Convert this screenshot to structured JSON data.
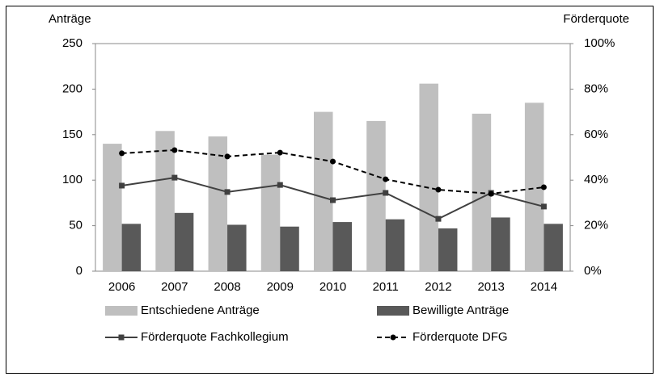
{
  "chart_data": {
    "type": "bar",
    "ylabel": "Anträge",
    "y2label": "Förderquote",
    "categories": [
      "2006",
      "2007",
      "2008",
      "2009",
      "2010",
      "2011",
      "2012",
      "2013",
      "2014"
    ],
    "series": [
      {
        "name": "Entschiedene Anträge",
        "type": "bar",
        "color": "#bfbfbf",
        "values": [
          140,
          154,
          148,
          128,
          175,
          165,
          206,
          173,
          185
        ]
      },
      {
        "name": "Bewilligte Anträge",
        "type": "bar",
        "color": "#595959",
        "values": [
          52,
          64,
          51,
          49,
          54,
          57,
          47,
          59,
          52
        ]
      },
      {
        "name": "Förderquote Fachkollegium",
        "type": "line",
        "axis": "y2",
        "color": "#404040",
        "marker": "square",
        "linestyle": "solid",
        "values": [
          37.6,
          41.1,
          34.8,
          37.9,
          31.2,
          34.4,
          23,
          34.4,
          28.4
        ]
      },
      {
        "name": "Förderquote DFG",
        "type": "line",
        "axis": "y2",
        "color": "#000000",
        "marker": "circle",
        "linestyle": "dashed",
        "values": [
          51.8,
          53.2,
          50.4,
          52.1,
          48.2,
          40.4,
          35.8,
          34,
          36.9
        ]
      }
    ],
    "ylim": [
      0,
      250
    ],
    "yticks": [
      0,
      50,
      100,
      150,
      200,
      250
    ],
    "y2lim": [
      0,
      100
    ],
    "y2ticks": [
      {
        "value": 0,
        "label": "0%"
      },
      {
        "value": 20,
        "label": "20%"
      },
      {
        "value": 40,
        "label": "40%"
      },
      {
        "value": 60,
        "label": "60%"
      },
      {
        "value": 80,
        "label": "80%"
      },
      {
        "value": 100,
        "label": "100%"
      }
    ],
    "grid": false,
    "legend": "bottom"
  }
}
